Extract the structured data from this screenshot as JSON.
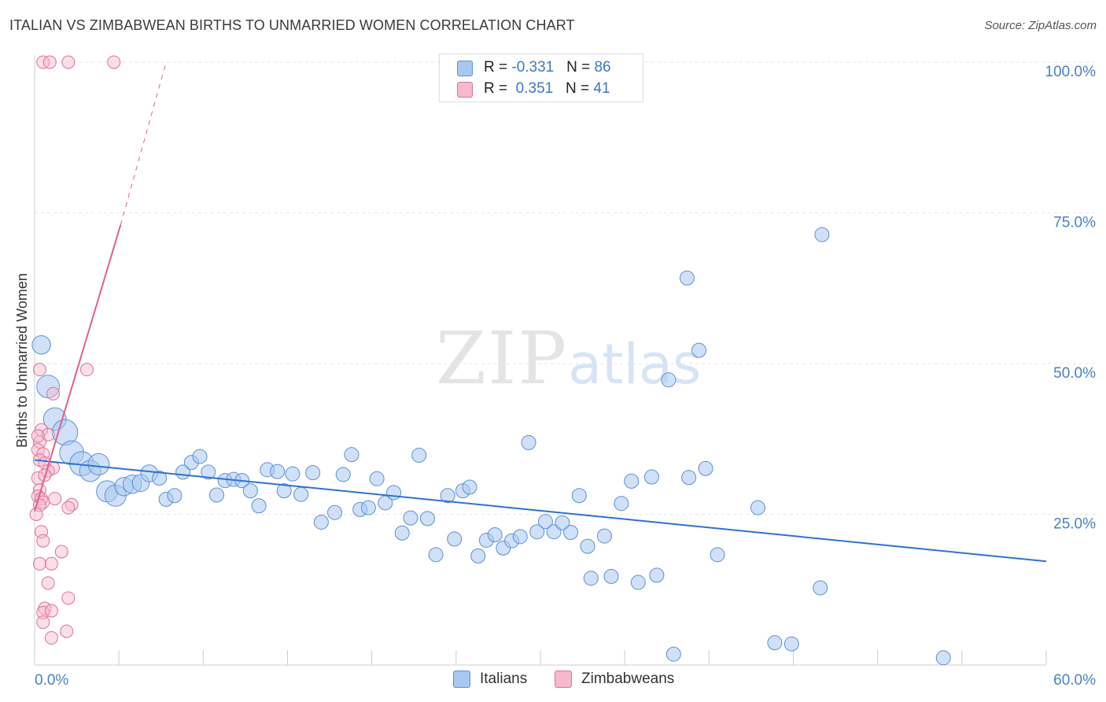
{
  "title": "ITALIAN VS ZIMBABWEAN BIRTHS TO UNMARRIED WOMEN CORRELATION CHART",
  "source": "Source: ZipAtlas.com",
  "watermark": {
    "zip": "ZIP",
    "atlas": "atlas"
  },
  "legend": {
    "rows": [
      {
        "r_label": "R = ",
        "r_value": "-0.331",
        "n_label": "N = ",
        "n_value": "86",
        "color": "#a9c8f0"
      },
      {
        "r_label": "R = ",
        "r_value": " 0.351",
        "n_label": "N = ",
        "n_value": "41",
        "color": "#f7b8cc"
      }
    ]
  },
  "chart_data": {
    "type": "scatter",
    "title": "ITALIAN VS ZIMBABWEAN BIRTHS TO UNMARRIED WOMEN CORRELATION CHART",
    "xlabel": "",
    "ylabel": "Births to Unmarried Women",
    "xlim": [
      0,
      60
    ],
    "ylim": [
      0,
      100
    ],
    "x_tick_labels": [
      "0.0%",
      "60.0%"
    ],
    "y_tick_labels": [
      "100.0%",
      "75.0%",
      "50.0%",
      "25.0%"
    ],
    "y_ticks": [
      100,
      75,
      50,
      25
    ],
    "grid": true,
    "legend": [
      "Italians",
      "Zimbabweans"
    ],
    "colors": {
      "italians_fill": "#a9c8f0",
      "italians_stroke": "#5b8fd6",
      "italians_line": "#2f72cf",
      "zimb_fill": "#f7b8cc",
      "zimb_stroke": "#e07098",
      "zimb_line": "#e0608e"
    },
    "series": [
      {
        "name": "Italians",
        "trend": {
          "x0": 0,
          "y0": 34.0,
          "x1": 60,
          "y1": 17.2
        },
        "points": [
          {
            "x": 0.4,
            "y": 53.1,
            "s": 1.3
          },
          {
            "x": 0.8,
            "y": 46.2,
            "s": 1.6
          },
          {
            "x": 1.2,
            "y": 40.8,
            "s": 1.6
          },
          {
            "x": 1.8,
            "y": 38.6,
            "s": 1.8
          },
          {
            "x": 2.2,
            "y": 35.2,
            "s": 1.7
          },
          {
            "x": 2.8,
            "y": 33.4,
            "s": 1.7
          },
          {
            "x": 3.3,
            "y": 32.2,
            "s": 1.5
          },
          {
            "x": 3.8,
            "y": 33.3,
            "s": 1.5
          },
          {
            "x": 4.3,
            "y": 28.8,
            "s": 1.5
          },
          {
            "x": 4.8,
            "y": 28.1,
            "s": 1.5
          },
          {
            "x": 5.3,
            "y": 29.6,
            "s": 1.3
          },
          {
            "x": 5.8,
            "y": 30.0,
            "s": 1.3
          },
          {
            "x": 6.3,
            "y": 30.2,
            "s": 1.2
          },
          {
            "x": 6.8,
            "y": 31.8,
            "s": 1.2
          },
          {
            "x": 7.4,
            "y": 31.0,
            "s": 1.0
          },
          {
            "x": 7.8,
            "y": 27.5,
            "s": 1.0
          },
          {
            "x": 8.3,
            "y": 28.1,
            "s": 1.0
          },
          {
            "x": 8.8,
            "y": 32.0,
            "s": 1.0
          },
          {
            "x": 9.3,
            "y": 33.6,
            "s": 1.0
          },
          {
            "x": 9.8,
            "y": 34.6,
            "s": 1.0
          },
          {
            "x": 10.3,
            "y": 32.0,
            "s": 1.0
          },
          {
            "x": 10.8,
            "y": 28.2,
            "s": 1.0
          },
          {
            "x": 11.3,
            "y": 30.6,
            "s": 1.0
          },
          {
            "x": 11.8,
            "y": 30.8,
            "s": 1.0
          },
          {
            "x": 12.3,
            "y": 30.6,
            "s": 1.0
          },
          {
            "x": 12.8,
            "y": 28.9,
            "s": 1.0
          },
          {
            "x": 13.3,
            "y": 26.4,
            "s": 1.0
          },
          {
            "x": 13.8,
            "y": 32.4,
            "s": 1.0
          },
          {
            "x": 14.4,
            "y": 32.1,
            "s": 1.0
          },
          {
            "x": 14.8,
            "y": 28.9,
            "s": 1.0
          },
          {
            "x": 15.3,
            "y": 31.7,
            "s": 1.0
          },
          {
            "x": 15.8,
            "y": 28.3,
            "s": 1.0
          },
          {
            "x": 16.5,
            "y": 31.9,
            "s": 1.0
          },
          {
            "x": 17.0,
            "y": 23.7,
            "s": 1.0
          },
          {
            "x": 17.8,
            "y": 25.3,
            "s": 1.0
          },
          {
            "x": 18.3,
            "y": 31.6,
            "s": 1.0
          },
          {
            "x": 18.8,
            "y": 34.9,
            "s": 1.0
          },
          {
            "x": 19.3,
            "y": 25.8,
            "s": 1.0
          },
          {
            "x": 19.8,
            "y": 26.1,
            "s": 1.0
          },
          {
            "x": 20.3,
            "y": 30.9,
            "s": 1.0
          },
          {
            "x": 20.8,
            "y": 26.9,
            "s": 1.0
          },
          {
            "x": 21.3,
            "y": 28.6,
            "s": 1.0
          },
          {
            "x": 21.8,
            "y": 21.9,
            "s": 1.0
          },
          {
            "x": 22.3,
            "y": 24.4,
            "s": 1.0
          },
          {
            "x": 22.8,
            "y": 34.8,
            "s": 1.0
          },
          {
            "x": 23.3,
            "y": 24.3,
            "s": 1.0
          },
          {
            "x": 23.8,
            "y": 18.3,
            "s": 1.0
          },
          {
            "x": 24.5,
            "y": 28.1,
            "s": 1.0
          },
          {
            "x": 24.9,
            "y": 20.9,
            "s": 1.0
          },
          {
            "x": 25.4,
            "y": 28.9,
            "s": 1.0
          },
          {
            "x": 25.8,
            "y": 29.5,
            "s": 1.0
          },
          {
            "x": 26.3,
            "y": 18.1,
            "s": 1.0
          },
          {
            "x": 26.8,
            "y": 20.7,
            "s": 1.0
          },
          {
            "x": 27.3,
            "y": 21.6,
            "s": 1.0
          },
          {
            "x": 27.8,
            "y": 19.4,
            "s": 1.0
          },
          {
            "x": 28.3,
            "y": 20.6,
            "s": 1.0
          },
          {
            "x": 28.8,
            "y": 21.3,
            "s": 1.0
          },
          {
            "x": 29.3,
            "y": 36.9,
            "s": 1.0
          },
          {
            "x": 29.8,
            "y": 22.1,
            "s": 1.0
          },
          {
            "x": 30.3,
            "y": 23.8,
            "s": 1.0
          },
          {
            "x": 30.8,
            "y": 22.1,
            "s": 1.0
          },
          {
            "x": 31.3,
            "y": 23.6,
            "s": 1.0
          },
          {
            "x": 31.8,
            "y": 22.0,
            "s": 1.0
          },
          {
            "x": 32.3,
            "y": 28.1,
            "s": 1.0
          },
          {
            "x": 32.8,
            "y": 19.7,
            "s": 1.0
          },
          {
            "x": 33.0,
            "y": 14.4,
            "s": 1.0
          },
          {
            "x": 33.8,
            "y": 21.4,
            "s": 1.0
          },
          {
            "x": 34.2,
            "y": 14.7,
            "s": 1.0
          },
          {
            "x": 34.8,
            "y": 26.8,
            "s": 1.0
          },
          {
            "x": 35.4,
            "y": 30.5,
            "s": 1.0
          },
          {
            "x": 35.8,
            "y": 13.7,
            "s": 1.0
          },
          {
            "x": 36.6,
            "y": 31.2,
            "s": 1.0
          },
          {
            "x": 36.9,
            "y": 14.9,
            "s": 1.0
          },
          {
            "x": 37.6,
            "y": 47.3,
            "s": 1.0
          },
          {
            "x": 37.9,
            "y": 1.8,
            "s": 1.0
          },
          {
            "x": 38.8,
            "y": 31.1,
            "s": 1.0
          },
          {
            "x": 38.7,
            "y": 64.2,
            "s": 1.0
          },
          {
            "x": 39.4,
            "y": 52.2,
            "s": 1.0
          },
          {
            "x": 39.8,
            "y": 32.6,
            "s": 1.0
          },
          {
            "x": 40.5,
            "y": 18.3,
            "s": 1.0
          },
          {
            "x": 42.9,
            "y": 26.1,
            "s": 1.0
          },
          {
            "x": 43.9,
            "y": 3.7,
            "s": 1.0
          },
          {
            "x": 44.9,
            "y": 3.5,
            "s": 1.0
          },
          {
            "x": 46.6,
            "y": 12.8,
            "s": 1.0
          },
          {
            "x": 46.7,
            "y": 71.4,
            "s": 1.0
          },
          {
            "x": 53.9,
            "y": 1.2,
            "s": 1.0
          }
        ]
      },
      {
        "name": "Zimbabweans",
        "trend": {
          "x0": 0,
          "y0": 25.5,
          "x1": 5.1,
          "y1": 73.0,
          "dash_x1": 7.8,
          "dash_y1": 100
        },
        "points": [
          {
            "x": 0.5,
            "y": 100,
            "s": 1.0
          },
          {
            "x": 0.9,
            "y": 100,
            "s": 1.0
          },
          {
            "x": 2.0,
            "y": 100,
            "s": 1.0
          },
          {
            "x": 4.7,
            "y": 100,
            "s": 1.0
          },
          {
            "x": 0.3,
            "y": 49.0,
            "s": 1.0
          },
          {
            "x": 3.1,
            "y": 49.0,
            "s": 1.0
          },
          {
            "x": 1.1,
            "y": 45.0,
            "s": 1.0
          },
          {
            "x": 0.4,
            "y": 39.0,
            "s": 1.0
          },
          {
            "x": 0.8,
            "y": 38.2,
            "s": 1.0
          },
          {
            "x": 0.3,
            "y": 37.0,
            "s": 1.0
          },
          {
            "x": 0.2,
            "y": 35.7,
            "s": 1.0
          },
          {
            "x": 0.5,
            "y": 35.0,
            "s": 1.0
          },
          {
            "x": 0.3,
            "y": 34.0,
            "s": 1.0
          },
          {
            "x": 0.6,
            "y": 33.5,
            "s": 1.0
          },
          {
            "x": 1.1,
            "y": 32.7,
            "s": 1.0
          },
          {
            "x": 0.8,
            "y": 32.2,
            "s": 1.0
          },
          {
            "x": 0.2,
            "y": 31.0,
            "s": 1.0
          },
          {
            "x": 0.3,
            "y": 29.0,
            "s": 1.0
          },
          {
            "x": 0.2,
            "y": 28.0,
            "s": 1.0
          },
          {
            "x": 0.4,
            "y": 27.6,
            "s": 1.0
          },
          {
            "x": 1.2,
            "y": 27.6,
            "s": 1.0
          },
          {
            "x": 0.5,
            "y": 27.0,
            "s": 1.0
          },
          {
            "x": 0.3,
            "y": 26.5,
            "s": 1.0
          },
          {
            "x": 2.2,
            "y": 26.6,
            "s": 1.0
          },
          {
            "x": 2.0,
            "y": 26.1,
            "s": 1.0
          },
          {
            "x": 0.1,
            "y": 25.0,
            "s": 1.0
          },
          {
            "x": 0.4,
            "y": 22.1,
            "s": 1.0
          },
          {
            "x": 0.5,
            "y": 20.6,
            "s": 1.0
          },
          {
            "x": 1.6,
            "y": 18.8,
            "s": 1.0
          },
          {
            "x": 0.3,
            "y": 16.8,
            "s": 1.0
          },
          {
            "x": 1.0,
            "y": 16.8,
            "s": 1.0
          },
          {
            "x": 0.8,
            "y": 13.6,
            "s": 1.0
          },
          {
            "x": 2.0,
            "y": 11.1,
            "s": 1.0
          },
          {
            "x": 0.6,
            "y": 9.4,
            "s": 1.0
          },
          {
            "x": 0.5,
            "y": 8.7,
            "s": 1.0
          },
          {
            "x": 1.0,
            "y": 9.0,
            "s": 1.0
          },
          {
            "x": 0.5,
            "y": 7.1,
            "s": 1.0
          },
          {
            "x": 1.9,
            "y": 5.6,
            "s": 1.0
          },
          {
            "x": 1.0,
            "y": 4.5,
            "s": 1.0
          },
          {
            "x": 0.2,
            "y": 38.0,
            "s": 1.0
          },
          {
            "x": 0.6,
            "y": 31.5,
            "s": 1.0
          }
        ]
      }
    ]
  }
}
